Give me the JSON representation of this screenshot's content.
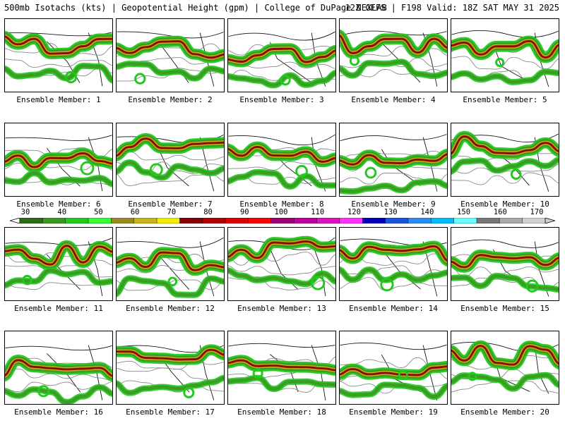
{
  "header": {
    "title": "500mb Isotachs (kts) | Geopotential Height (gpm) | College of DuPage NEXLAB",
    "run_info": "12Z GEFS | F198 Valid: 18Z SAT MAY 31 2025"
  },
  "colorbar": {
    "labels": [
      "30",
      "40",
      "50",
      "60",
      "70",
      "80",
      "90",
      "100",
      "110",
      "120",
      "130",
      "140",
      "150",
      "160",
      "170"
    ],
    "colors": [
      "#2e6b1a",
      "#3a9a20",
      "#22c81e",
      "#33ff33",
      "#9a8a22",
      "#c8b418",
      "#eeee00",
      "#8b0000",
      "#b00000",
      "#dd0000",
      "#ff0000",
      "#a0007a",
      "#c000a0",
      "#e010c0",
      "#ff30ff",
      "#0000bb",
      "#1a55dd",
      "#2a8cf0",
      "#00bbff",
      "#66ffff",
      "#777777",
      "#aaaaaa",
      "#d0d0d0"
    ]
  },
  "members": [
    {
      "label": "Ensemble Member: 1"
    },
    {
      "label": "Ensemble Member: 2"
    },
    {
      "label": "Ensemble Member: 3"
    },
    {
      "label": "Ensemble Member: 4"
    },
    {
      "label": "Ensemble Member: 5"
    },
    {
      "label": "Ensemble Member: 6"
    },
    {
      "label": "Ensemble Member: 7"
    },
    {
      "label": "Ensemble Member: 8"
    },
    {
      "label": "Ensemble Member: 9"
    },
    {
      "label": "Ensemble Member: 10"
    },
    {
      "label": "Ensemble Member: 11"
    },
    {
      "label": "Ensemble Member: 12"
    },
    {
      "label": "Ensemble Member: 13"
    },
    {
      "label": "Ensemble Member: 14"
    },
    {
      "label": "Ensemble Member: 15"
    },
    {
      "label": "Ensemble Member: 16"
    },
    {
      "label": "Ensemble Member: 17"
    },
    {
      "label": "Ensemble Member: 18"
    },
    {
      "label": "Ensemble Member: 19"
    },
    {
      "label": "Ensemble Member: 20"
    }
  ]
}
